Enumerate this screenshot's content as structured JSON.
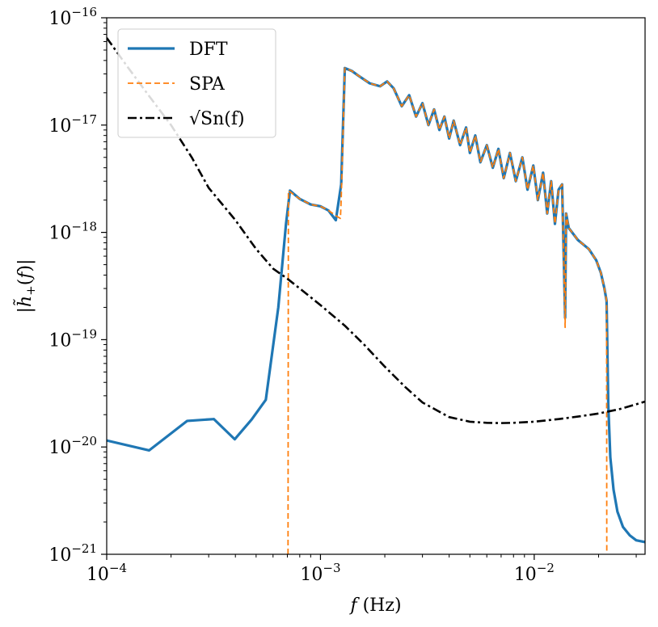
{
  "chart_data": {
    "type": "line",
    "xscale": "log",
    "yscale": "log",
    "xlim": [
      0.0001,
      0.033
    ],
    "ylim": [
      1e-21,
      1e-16
    ],
    "xlabel": "f (Hz)",
    "ylabel": "|h̃+(f)|",
    "x_ticks": [
      {
        "value": 0.0001,
        "base": "10",
        "exp": "−4"
      },
      {
        "value": 0.001,
        "base": "10",
        "exp": "−3"
      },
      {
        "value": 0.01,
        "base": "10",
        "exp": "−2"
      }
    ],
    "y_ticks": [
      {
        "value": 1e-21,
        "base": "10",
        "exp": "−21"
      },
      {
        "value": 1e-20,
        "base": "10",
        "exp": "−20"
      },
      {
        "value": 1e-19,
        "base": "10",
        "exp": "−19"
      },
      {
        "value": 1e-18,
        "base": "10",
        "exp": "−18"
      },
      {
        "value": 1e-17,
        "base": "10",
        "exp": "−17"
      },
      {
        "value": 1e-16,
        "base": "10",
        "exp": "−16"
      }
    ],
    "legend_position": "top-left",
    "series": [
      {
        "name": "DFT",
        "style": "solid",
        "color": "#1f77b4",
        "points": [
          [
            0.0001,
            1.15e-20
          ],
          [
            0.000158,
            9.3e-21
          ],
          [
            0.000238,
            1.75e-20
          ],
          [
            0.000317,
            1.82e-20
          ],
          [
            0.000397,
            1.18e-20
          ],
          [
            0.000476,
            1.8e-20
          ],
          [
            0.000555,
            2.75e-20
          ],
          [
            0.000635,
            2e-19
          ],
          [
            0.00069,
            1.2e-18
          ],
          [
            0.00072,
            2.45e-18
          ],
          [
            0.0008,
            2.05e-18
          ],
          [
            0.0009,
            1.82e-18
          ],
          [
            0.001,
            1.75e-18
          ],
          [
            0.00109,
            1.6e-18
          ],
          [
            0.00118,
            1.3e-18
          ],
          [
            0.00125,
            2.8e-18
          ],
          [
            0.0013,
            3.4e-17
          ],
          [
            0.0014,
            3.2e-17
          ],
          [
            0.0015,
            2.9e-17
          ],
          [
            0.0017,
            2.45e-17
          ],
          [
            0.0019,
            2.3e-17
          ],
          [
            0.00205,
            2.55e-17
          ],
          [
            0.0022,
            2.2e-17
          ],
          [
            0.0024,
            1.5e-17
          ],
          [
            0.0026,
            1.9e-17
          ],
          [
            0.0028,
            1.2e-17
          ],
          [
            0.003,
            1.6e-17
          ],
          [
            0.0032,
            1e-17
          ],
          [
            0.0034,
            1.4e-17
          ],
          [
            0.0036,
            9e-18
          ],
          [
            0.0038,
            1.2e-17
          ],
          [
            0.004,
            7.5e-18
          ],
          [
            0.0042,
            1.1e-17
          ],
          [
            0.0045,
            6.5e-18
          ],
          [
            0.0048,
            9.5e-18
          ],
          [
            0.005,
            5.5e-18
          ],
          [
            0.0053,
            8e-18
          ],
          [
            0.0056,
            4.5e-18
          ],
          [
            0.006,
            6.5e-18
          ],
          [
            0.0064,
            4e-18
          ],
          [
            0.0068,
            6e-18
          ],
          [
            0.0072,
            3.2e-18
          ],
          [
            0.0077,
            5.5e-18
          ],
          [
            0.0082,
            3e-18
          ],
          [
            0.0088,
            5e-18
          ],
          [
            0.0093,
            2.5e-18
          ],
          [
            0.0099,
            4.2e-18
          ],
          [
            0.0104,
            2e-18
          ],
          [
            0.011,
            3.6e-18
          ],
          [
            0.0115,
            1.5e-18
          ],
          [
            0.012,
            3e-18
          ],
          [
            0.0125,
            1.2e-18
          ],
          [
            0.013,
            2.5e-18
          ],
          [
            0.0135,
            2.8e-18
          ],
          [
            0.01395,
            1.6e-19
          ],
          [
            0.0141,
            1.5e-18
          ],
          [
            0.0145,
            1.1e-18
          ],
          [
            0.016,
            8.5e-19
          ],
          [
            0.018,
            7e-19
          ],
          [
            0.0195,
            5.5e-19
          ],
          [
            0.0205,
            4.2e-19
          ],
          [
            0.0213,
            3e-19
          ],
          [
            0.0218,
            2.3e-19
          ],
          [
            0.0222,
            2.5e-20
          ],
          [
            0.0227,
            8e-21
          ],
          [
            0.0235,
            4e-21
          ],
          [
            0.0245,
            2.5e-21
          ],
          [
            0.026,
            1.8e-21
          ],
          [
            0.028,
            1.5e-21
          ],
          [
            0.03,
            1.35e-21
          ],
          [
            0.033,
            1.3e-21
          ]
        ]
      },
      {
        "name": "SPA",
        "style": "dashed",
        "color": "#ff7f0e",
        "points": [
          [
            0.000705,
            1e-21
          ],
          [
            0.000708,
            2.45e-18
          ],
          [
            0.0008,
            2.05e-18
          ],
          [
            0.0009,
            1.82e-18
          ],
          [
            0.001,
            1.75e-18
          ],
          [
            0.00109,
            1.6e-18
          ],
          [
            0.0012,
            1.4e-18
          ],
          [
            0.00124,
            1.35e-18
          ],
          [
            0.00125,
            2e-18
          ],
          [
            0.0013,
            3.4e-17
          ],
          [
            0.0014,
            3.2e-17
          ],
          [
            0.0015,
            2.9e-17
          ],
          [
            0.0017,
            2.45e-17
          ],
          [
            0.0019,
            2.3e-17
          ],
          [
            0.00205,
            2.55e-17
          ],
          [
            0.0022,
            2.2e-17
          ],
          [
            0.0024,
            1.5e-17
          ],
          [
            0.0026,
            1.9e-17
          ],
          [
            0.0028,
            1.2e-17
          ],
          [
            0.003,
            1.6e-17
          ],
          [
            0.0032,
            1e-17
          ],
          [
            0.0034,
            1.4e-17
          ],
          [
            0.0036,
            9e-18
          ],
          [
            0.0038,
            1.2e-17
          ],
          [
            0.004,
            7.5e-18
          ],
          [
            0.0042,
            1.1e-17
          ],
          [
            0.0045,
            6.5e-18
          ],
          [
            0.0048,
            9.5e-18
          ],
          [
            0.005,
            5.5e-18
          ],
          [
            0.0053,
            8e-18
          ],
          [
            0.0056,
            4.5e-18
          ],
          [
            0.006,
            6.5e-18
          ],
          [
            0.0064,
            4e-18
          ],
          [
            0.0068,
            6e-18
          ],
          [
            0.0072,
            3.2e-18
          ],
          [
            0.0077,
            5.5e-18
          ],
          [
            0.0082,
            3e-18
          ],
          [
            0.0088,
            5e-18
          ],
          [
            0.0093,
            2.5e-18
          ],
          [
            0.0099,
            4.2e-18
          ],
          [
            0.0104,
            2e-18
          ],
          [
            0.011,
            3.6e-18
          ],
          [
            0.0115,
            1.5e-18
          ],
          [
            0.012,
            3e-18
          ],
          [
            0.0125,
            1.2e-18
          ],
          [
            0.013,
            2.5e-18
          ],
          [
            0.0135,
            2.8e-18
          ],
          [
            0.01395,
            1.3e-19
          ],
          [
            0.0141,
            1.5e-18
          ],
          [
            0.0145,
            1.1e-18
          ],
          [
            0.016,
            8.5e-19
          ],
          [
            0.018,
            7e-19
          ],
          [
            0.0195,
            5.5e-19
          ],
          [
            0.0205,
            4.2e-19
          ],
          [
            0.0213,
            3e-19
          ],
          [
            0.0218,
            2.3e-19
          ],
          [
            0.02185,
            1e-21
          ]
        ]
      },
      {
        "name": "√Sn(f)",
        "style": "dashdot",
        "color": "#000000",
        "points": [
          [
            0.0001,
            6.5e-17
          ],
          [
            0.000125,
            3.5e-17
          ],
          [
            0.00016,
            1.8e-17
          ],
          [
            0.0002,
            1e-17
          ],
          [
            0.00025,
            5e-18
          ],
          [
            0.0003,
            2.6e-18
          ],
          [
            0.0004,
            1.3e-18
          ],
          [
            0.0005,
            7e-19
          ],
          [
            0.0006,
            4.6e-19
          ],
          [
            0.0007,
            3.7e-19
          ],
          [
            0.0008,
            3e-19
          ],
          [
            0.001,
            2.1e-19
          ],
          [
            0.0013,
            1.35e-19
          ],
          [
            0.0016,
            9e-20
          ],
          [
            0.002,
            5.6e-20
          ],
          [
            0.0025,
            3.6e-20
          ],
          [
            0.003,
            2.6e-20
          ],
          [
            0.004,
            1.9e-20
          ],
          [
            0.005,
            1.72e-20
          ],
          [
            0.006,
            1.68e-20
          ],
          [
            0.007,
            1.67e-20
          ],
          [
            0.008,
            1.68e-20
          ],
          [
            0.01,
            1.72e-20
          ],
          [
            0.013,
            1.82e-20
          ],
          [
            0.016,
            1.92e-20
          ],
          [
            0.02,
            2.05e-20
          ],
          [
            0.025,
            2.25e-20
          ],
          [
            0.03,
            2.5e-20
          ],
          [
            0.033,
            2.65e-20
          ]
        ]
      }
    ]
  }
}
